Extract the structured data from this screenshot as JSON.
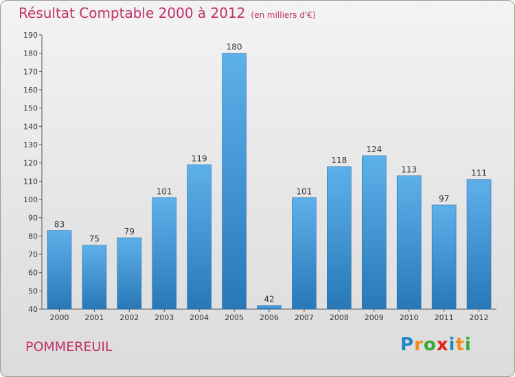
{
  "title": "Résultat Comptable 2000 à 2012",
  "unit": "(en milliers d'€)",
  "commune": "POMMEREUIL",
  "logo": {
    "letters": [
      "P",
      "r",
      "o",
      "x",
      "i",
      "t",
      "i"
    ],
    "colors": [
      "#1e88c8",
      "#f28c1e",
      "#3aa935",
      "#e2231a",
      "#1e88c8",
      "#f28c1e",
      "#3aa935"
    ]
  },
  "colors": {
    "bar_top": "#5eb0ea",
    "bar_bottom": "#2878b8",
    "title": "#c0316a"
  },
  "chart_data": {
    "type": "bar",
    "title": "Résultat Comptable 2000 à 2012",
    "xlabel": "",
    "ylabel": "",
    "ylim": [
      40,
      190
    ],
    "yticks": [
      40,
      50,
      60,
      70,
      80,
      90,
      100,
      110,
      120,
      130,
      140,
      150,
      160,
      170,
      180,
      190
    ],
    "grid": false,
    "categories": [
      "2000",
      "2001",
      "2002",
      "2003",
      "2004",
      "2005",
      "2006",
      "2007",
      "2008",
      "2009",
      "2010",
      "2011",
      "2012"
    ],
    "values": [
      83,
      75,
      79,
      101,
      119,
      180,
      42,
      101,
      118,
      124,
      113,
      97,
      111
    ]
  }
}
